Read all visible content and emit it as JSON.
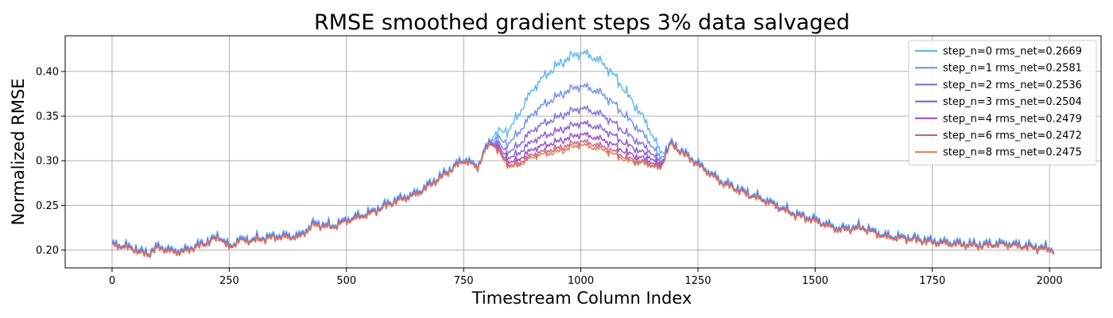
{
  "chart_data": {
    "type": "line",
    "title": "RMSE smoothed gradient steps 3% data salvaged",
    "xlabel": "Timestream Column Index",
    "ylabel": "Normalized RMSE",
    "xlim": [
      -100,
      2110
    ],
    "ylim": [
      0.18,
      0.44
    ],
    "xticks": [
      0,
      250,
      500,
      750,
      1000,
      1250,
      1500,
      1750,
      2000
    ],
    "yticks": [
      0.2,
      0.25,
      0.3,
      0.35,
      0.4
    ],
    "xtick_labels": [
      "0",
      "250",
      "500",
      "750",
      "1000",
      "1250",
      "1500",
      "1750",
      "2000"
    ],
    "ytick_labels": [
      "0.20",
      "0.25",
      "0.30",
      "0.35",
      "0.40"
    ],
    "grid": true,
    "legend_position": "top-right",
    "base_curve": {
      "x": [
        0,
        25,
        50,
        60,
        80,
        100,
        120,
        150,
        200,
        230,
        250,
        270,
        300,
        350,
        400,
        430,
        470,
        500,
        550,
        600,
        650,
        700,
        750,
        780,
        800,
        810,
        830,
        850,
        870,
        900,
        950,
        1000,
        1050,
        1100,
        1150,
        1170,
        1180,
        1190,
        1200,
        1250,
        1300,
        1350,
        1400,
        1450,
        1500,
        1550,
        1600,
        1650,
        1700,
        1750,
        1800,
        1850,
        1900,
        1950,
        2000,
        2010
      ],
      "y": [
        0.205,
        0.203,
        0.2,
        0.196,
        0.195,
        0.203,
        0.198,
        0.197,
        0.207,
        0.214,
        0.201,
        0.21,
        0.21,
        0.214,
        0.214,
        0.228,
        0.225,
        0.232,
        0.24,
        0.253,
        0.262,
        0.28,
        0.3,
        0.292,
        0.315,
        0.32,
        0.305,
        0.292,
        0.296,
        0.305,
        0.31,
        0.318,
        0.312,
        0.3,
        0.295,
        0.29,
        0.305,
        0.318,
        0.315,
        0.295,
        0.275,
        0.263,
        0.253,
        0.24,
        0.232,
        0.222,
        0.224,
        0.214,
        0.212,
        0.208,
        0.206,
        0.204,
        0.206,
        0.203,
        0.2,
        0.198
      ]
    },
    "series": [
      {
        "name": "step_n=0 rms_net=0.2669",
        "color": "#5ab4ee",
        "peak_add": 0.1,
        "offset": 0.003
      },
      {
        "name": "step_n=1 rms_net=0.2581",
        "color": "#6d8fe6",
        "peak_add": 0.064,
        "offset": 0.002
      },
      {
        "name": "step_n=2 rms_net=0.2536",
        "color": "#7b6cd8",
        "peak_add": 0.04,
        "offset": 0.001
      },
      {
        "name": "step_n=3 rms_net=0.2504",
        "color": "#8756cc",
        "peak_add": 0.024,
        "offset": 0.0005
      },
      {
        "name": "step_n=4 rms_net=0.2479",
        "color": "#9a45bf",
        "peak_add": 0.012,
        "offset": 0.0
      },
      {
        "name": "step_n=6 rms_net=0.2472",
        "color": "#c0608a",
        "peak_add": 0.004,
        "offset": 0.0
      },
      {
        "name": "step_n=8 rms_net=0.2475",
        "color": "#e07a52",
        "peak_add": 0.0,
        "offset": 0.0
      }
    ]
  }
}
